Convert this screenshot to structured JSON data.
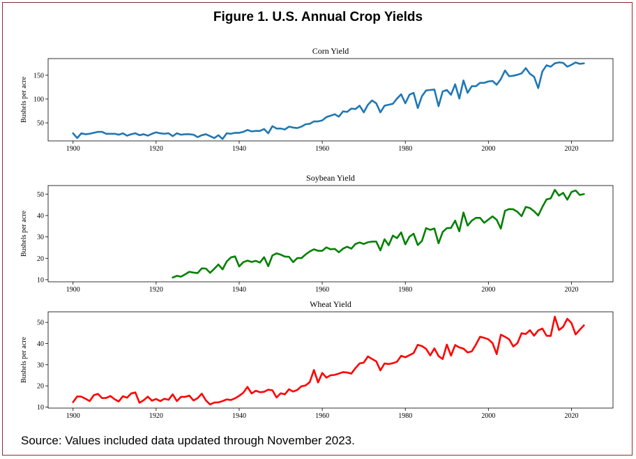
{
  "figure": {
    "title": "Figure 1. U.S. Annual Crop Yields",
    "source": "Source: Values included data updated through November 2023."
  },
  "chart_data": [
    {
      "type": "line",
      "title": "Corn Yield",
      "xlabel": "",
      "ylabel": "Bushels per acre",
      "xlim": [
        1894,
        2030
      ],
      "ylim": [
        12,
        185
      ],
      "xticks": [
        1900,
        1920,
        1940,
        1960,
        1980,
        2000,
        2020
      ],
      "yticks": [
        50,
        100,
        150
      ],
      "grid": false,
      "color": "#1f77b4",
      "x": [
        1900,
        1901,
        1902,
        1903,
        1904,
        1905,
        1906,
        1907,
        1908,
        1909,
        1910,
        1911,
        1912,
        1913,
        1914,
        1915,
        1916,
        1917,
        1918,
        1919,
        1920,
        1921,
        1922,
        1923,
        1924,
        1925,
        1926,
        1927,
        1928,
        1929,
        1930,
        1931,
        1932,
        1933,
        1934,
        1935,
        1936,
        1937,
        1938,
        1939,
        1940,
        1941,
        1942,
        1943,
        1944,
        1945,
        1946,
        1947,
        1948,
        1949,
        1950,
        1951,
        1952,
        1953,
        1954,
        1955,
        1956,
        1957,
        1958,
        1959,
        1960,
        1961,
        1962,
        1963,
        1964,
        1965,
        1966,
        1967,
        1968,
        1969,
        1970,
        1971,
        1972,
        1973,
        1974,
        1975,
        1976,
        1977,
        1978,
        1979,
        1980,
        1981,
        1982,
        1983,
        1984,
        1985,
        1986,
        1987,
        1988,
        1989,
        1990,
        1991,
        1992,
        1993,
        1994,
        1995,
        1996,
        1997,
        1998,
        1999,
        2000,
        2001,
        2002,
        2003,
        2004,
        2005,
        2006,
        2007,
        2008,
        2009,
        2010,
        2011,
        2012,
        2013,
        2014,
        2015,
        2016,
        2017,
        2018,
        2019,
        2020,
        2021,
        2022,
        2023
      ],
      "values": [
        28,
        18,
        28,
        26,
        27,
        29,
        31,
        31,
        27,
        27,
        27,
        25,
        28,
        23,
        26,
        28,
        24,
        26,
        23,
        27,
        30,
        28,
        27,
        28,
        22,
        28,
        25,
        26,
        26,
        25,
        20,
        24,
        26,
        22,
        18,
        24,
        16,
        28,
        27,
        29,
        29,
        31,
        35,
        32,
        33,
        33,
        37,
        28,
        43,
        38,
        38,
        36,
        42,
        40,
        39,
        42,
        47,
        48,
        53,
        53,
        55,
        62,
        65,
        68,
        63,
        74,
        73,
        80,
        79,
        86,
        72,
        88,
        97,
        91,
        72,
        86,
        88,
        90,
        101,
        110,
        91,
        109,
        113,
        81,
        106,
        118,
        119,
        120,
        85,
        116,
        119,
        109,
        131,
        101,
        139,
        113,
        127,
        127,
        134,
        134,
        137,
        138,
        130,
        142,
        160,
        148,
        149,
        151,
        154,
        165,
        153,
        147,
        123,
        158,
        171,
        168,
        175,
        177,
        176,
        168,
        172,
        177,
        174,
        175
      ]
    },
    {
      "type": "line",
      "title": "Soybean Yield",
      "xlabel": "",
      "ylabel": "Bushels per acre",
      "xlim": [
        1894,
        2030
      ],
      "ylim": [
        9,
        54
      ],
      "xticks": [
        1900,
        1920,
        1940,
        1960,
        1980,
        2000,
        2020
      ],
      "yticks": [
        10,
        20,
        30,
        40,
        50
      ],
      "grid": false,
      "color": "#008000",
      "x": [
        1924,
        1925,
        1926,
        1927,
        1928,
        1929,
        1930,
        1931,
        1932,
        1933,
        1934,
        1935,
        1936,
        1937,
        1938,
        1939,
        1940,
        1941,
        1942,
        1943,
        1944,
        1945,
        1946,
        1947,
        1948,
        1949,
        1950,
        1951,
        1952,
        1953,
        1954,
        1955,
        1956,
        1957,
        1958,
        1959,
        1960,
        1961,
        1962,
        1963,
        1964,
        1965,
        1966,
        1967,
        1968,
        1969,
        1970,
        1971,
        1972,
        1973,
        1974,
        1975,
        1976,
        1977,
        1978,
        1979,
        1980,
        1981,
        1982,
        1983,
        1984,
        1985,
        1986,
        1987,
        1988,
        1989,
        1990,
        1991,
        1992,
        1993,
        1994,
        1995,
        1996,
        1997,
        1998,
        1999,
        2000,
        2001,
        2002,
        2003,
        2004,
        2005,
        2006,
        2007,
        2008,
        2009,
        2010,
        2011,
        2012,
        2013,
        2014,
        2015,
        2016,
        2017,
        2018,
        2019,
        2020,
        2021,
        2022,
        2023
      ],
      "values": [
        11,
        11.8,
        11.4,
        12.5,
        13.7,
        13.3,
        13.1,
        15.3,
        15.2,
        13.2,
        15.1,
        17.1,
        14.8,
        18.5,
        20.4,
        20.9,
        16.2,
        18.2,
        18.9,
        18.3,
        18.8,
        18,
        20.5,
        16.3,
        21.3,
        22.3,
        21.7,
        20.8,
        20.7,
        18.2,
        20.1,
        20.1,
        21.8,
        23.2,
        24.2,
        23.5,
        23.5,
        25.1,
        24.2,
        24.4,
        22.8,
        24.5,
        25.4,
        24.5,
        26.7,
        27.4,
        26.7,
        27.5,
        27.8,
        27.8,
        23.7,
        28.9,
        26.1,
        30.6,
        29.4,
        32.1,
        26.5,
        30.1,
        31.5,
        26.2,
        28.1,
        34.1,
        33.3,
        33.9,
        27,
        32.3,
        34.1,
        34.2,
        37.6,
        32.6,
        41.4,
        35.3,
        37.6,
        38.9,
        38.9,
        36.6,
        38.1,
        39.6,
        38,
        33.9,
        42.2,
        43,
        42.9,
        41.7,
        39.7,
        44,
        43.5,
        42,
        40,
        44,
        47.5,
        48,
        52,
        49.3,
        50.6,
        47.4,
        51,
        51.7,
        49.6,
        50
      ]
    },
    {
      "type": "line",
      "title": "Wheat Yield",
      "xlabel": "",
      "ylabel": "Bushels per acre",
      "xlim": [
        1894,
        2030
      ],
      "ylim": [
        9.5,
        55
      ],
      "xticks": [
        1900,
        1920,
        1940,
        1960,
        1980,
        2000,
        2020
      ],
      "yticks": [
        10,
        20,
        30,
        40,
        50
      ],
      "grid": false,
      "color": "#ff0000",
      "x": [
        1900,
        1901,
        1902,
        1903,
        1904,
        1905,
        1906,
        1907,
        1908,
        1909,
        1910,
        1911,
        1912,
        1913,
        1914,
        1915,
        1916,
        1917,
        1918,
        1919,
        1920,
        1921,
        1922,
        1923,
        1924,
        1925,
        1926,
        1927,
        1928,
        1929,
        1930,
        1931,
        1932,
        1933,
        1934,
        1935,
        1936,
        1937,
        1938,
        1939,
        1940,
        1941,
        1942,
        1943,
        1944,
        1945,
        1946,
        1947,
        1948,
        1949,
        1950,
        1951,
        1952,
        1953,
        1954,
        1955,
        1956,
        1957,
        1958,
        1959,
        1960,
        1961,
        1962,
        1963,
        1964,
        1965,
        1966,
        1967,
        1968,
        1969,
        1970,
        1971,
        1972,
        1973,
        1974,
        1975,
        1976,
        1977,
        1978,
        1979,
        1980,
        1981,
        1982,
        1983,
        1984,
        1985,
        1986,
        1987,
        1988,
        1989,
        1990,
        1991,
        1992,
        1993,
        1994,
        1995,
        1996,
        1997,
        1998,
        1999,
        2000,
        2001,
        2002,
        2003,
        2004,
        2005,
        2006,
        2007,
        2008,
        2009,
        2010,
        2011,
        2012,
        2013,
        2014,
        2015,
        2016,
        2017,
        2018,
        2019,
        2020,
        2021,
        2022,
        2023
      ],
      "values": [
        12.3,
        15,
        14.9,
        13.9,
        12.8,
        15.6,
        16.2,
        14.2,
        14.3,
        15.2,
        13.7,
        12.6,
        15.1,
        14.4,
        16.4,
        16.9,
        12,
        13.2,
        14.9,
        13,
        13.8,
        12.8,
        13.9,
        13.4,
        16,
        12.8,
        14.8,
        14.8,
        15.4,
        13.1,
        14.2,
        16.3,
        13.1,
        11.2,
        12.1,
        12.2,
        12.8,
        13.6,
        13.3,
        14.1,
        15.3,
        16.8,
        19.5,
        16.4,
        17.7,
        17,
        17.2,
        18.2,
        17.9,
        14.5,
        16.5,
        16,
        18.4,
        17.3,
        18.1,
        19.8,
        20.2,
        21.8,
        27.5,
        21.6,
        26.1,
        23.9,
        25,
        25.2,
        25.8,
        26.5,
        26.3,
        25.8,
        28.4,
        30.6,
        31,
        33.9,
        32.7,
        31.6,
        27.3,
        30.6,
        30.3,
        30.7,
        31.4,
        34.2,
        33.5,
        34.5,
        35.5,
        39.4,
        38.8,
        37.5,
        34.4,
        37.7,
        34.1,
        32.7,
        39.5,
        34.3,
        39.3,
        38.2,
        37.6,
        35.8,
        36.3,
        39.5,
        43.2,
        42.7,
        42,
        40.2,
        35,
        44.2,
        43.2,
        42,
        38.6,
        40.2,
        44.9,
        44.5,
        46.3,
        43.7,
        46.2,
        47.1,
        43.7,
        43.6,
        52.7,
        46.4,
        47.9,
        51.7,
        49.7,
        44.3,
        46.5,
        48.6
      ]
    }
  ]
}
